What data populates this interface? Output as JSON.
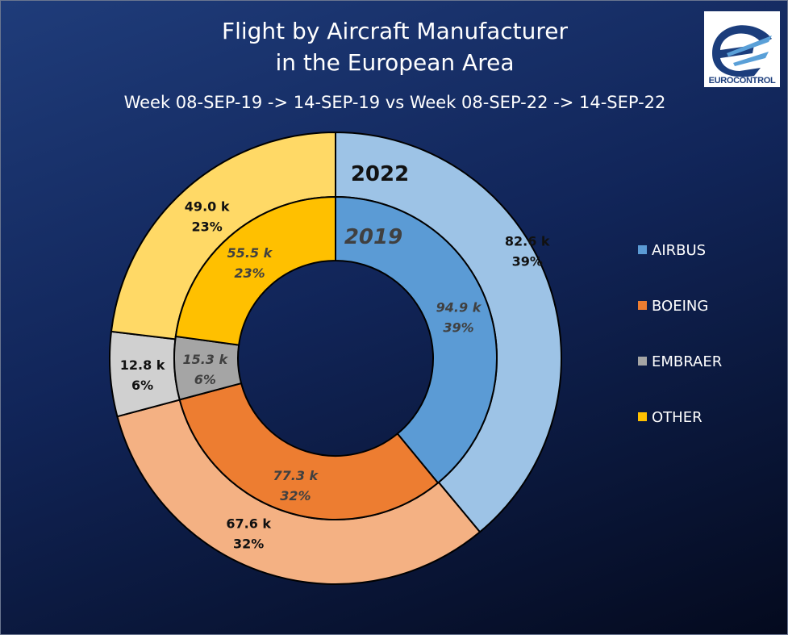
{
  "chart_data": {
    "type": "pie",
    "subtype": "doughnut",
    "title_line1": "Flight by Aircraft Manufacturer",
    "title_line2": "in the European Area",
    "subtitle": "Week 08-SEP-19 -> 14-SEP-19 vs Week 08-SEP-22 -> 14-SEP-22",
    "categories": [
      "AIRBUS",
      "BOEING",
      "EMBRAER",
      "OTHER"
    ],
    "series": [
      {
        "name": "2022",
        "ring": "outer",
        "values": [
          82.6,
          67.6,
          12.8,
          49.0
        ],
        "value_labels": [
          "82.6 k",
          "67.6 k",
          "12.8 k",
          "49.0 k"
        ],
        "percent_labels": [
          "39%",
          "32%",
          "6%",
          "23%"
        ],
        "colors": [
          "#9dc3e6",
          "#f4b183",
          "#d0d0d0",
          "#ffd966"
        ]
      },
      {
        "name": "2019",
        "ring": "inner",
        "values": [
          94.9,
          77.3,
          15.3,
          55.5
        ],
        "value_labels": [
          "94.9 k",
          "77.3 k",
          "15.3 k",
          "55.5 k"
        ],
        "percent_labels": [
          "39%",
          "32%",
          "6%",
          "23%"
        ],
        "colors": [
          "#5b9bd5",
          "#ed7d31",
          "#a5a5a5",
          "#ffc000"
        ]
      }
    ],
    "legend": {
      "position": "right",
      "items": [
        "AIRBUS",
        "BOEING",
        "EMBRAER",
        "OTHER"
      ],
      "colors": [
        "#5b9bd5",
        "#ed7d31",
        "#a5a5a5",
        "#ffc000"
      ]
    }
  },
  "logo": {
    "text": "EUROCONTROL",
    "icon": "eurocontrol-logo-icon"
  },
  "colors": {
    "background_top": "#1f3c7a",
    "background_bottom": "#040a1e",
    "title": "#ffffff"
  }
}
